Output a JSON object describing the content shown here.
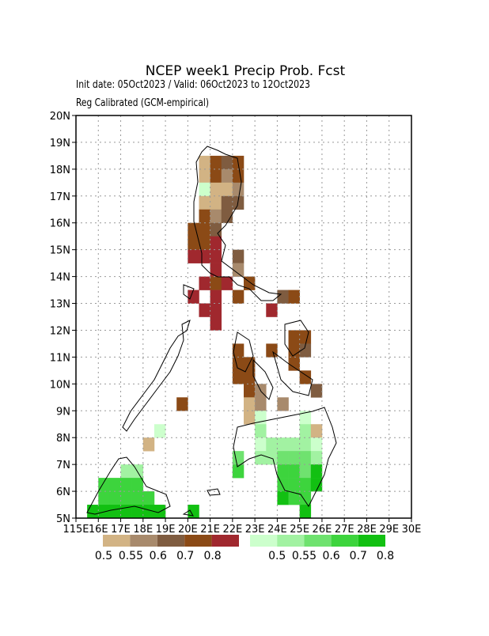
{
  "header": {
    "title": "NCEP week1 Precip Prob. Fcst",
    "subtitle": "Init date: 05Oct2023 / Valid: 06Oct2023 to 12Oct2023",
    "method": "Reg Calibrated (GCM-empirical)"
  },
  "map": {
    "xticks": [
      {
        "value": 115,
        "label": "115E"
      },
      {
        "value": 116,
        "label": "16E"
      },
      {
        "value": 117,
        "label": "17E"
      },
      {
        "value": 118,
        "label": "18E"
      },
      {
        "value": 119,
        "label": "19E"
      },
      {
        "value": 120,
        "label": "20E"
      },
      {
        "value": 121,
        "label": "21E"
      },
      {
        "value": 122,
        "label": "22E"
      },
      {
        "value": 123,
        "label": "23E"
      },
      {
        "value": 124,
        "label": "24E"
      },
      {
        "value": 125,
        "label": "25E"
      },
      {
        "value": 126,
        "label": "26E"
      },
      {
        "value": 127,
        "label": "27E"
      },
      {
        "value": 128,
        "label": "28E"
      },
      {
        "value": 129,
        "label": "29E"
      },
      {
        "value": 130,
        "label": "30E"
      }
    ],
    "yticks": [
      {
        "value": 5,
        "label": "5N"
      },
      {
        "value": 6,
        "label": "6N"
      },
      {
        "value": 7,
        "label": "7N"
      },
      {
        "value": 8,
        "label": "8N"
      },
      {
        "value": 9,
        "label": "9N"
      },
      {
        "value": 10,
        "label": "10N"
      },
      {
        "value": 11,
        "label": "11N"
      },
      {
        "value": 12,
        "label": "12N"
      },
      {
        "value": 13,
        "label": "13N"
      },
      {
        "value": 14,
        "label": "14N"
      },
      {
        "value": 15,
        "label": "15N"
      },
      {
        "value": 16,
        "label": "16N"
      },
      {
        "value": 17,
        "label": "17N"
      },
      {
        "value": 18,
        "label": "18N"
      },
      {
        "value": 19,
        "label": "19N"
      },
      {
        "value": 20,
        "label": "20N"
      }
    ]
  },
  "legends": [
    {
      "colors": [
        "#d2b384",
        "#a88a6c",
        "#7f5c40",
        "#8b4a16",
        "#a0282e"
      ],
      "labels": [
        0.5,
        0.55,
        0.6,
        0.7,
        0.8
      ]
    },
    {
      "colors": [
        "#ccffcc",
        "#a2f2a2",
        "#6fe26f",
        "#3dd43d",
        "#12c012"
      ],
      "labels": [
        0.5,
        0.55,
        0.6,
        0.7,
        0.8
      ]
    }
  ]
}
